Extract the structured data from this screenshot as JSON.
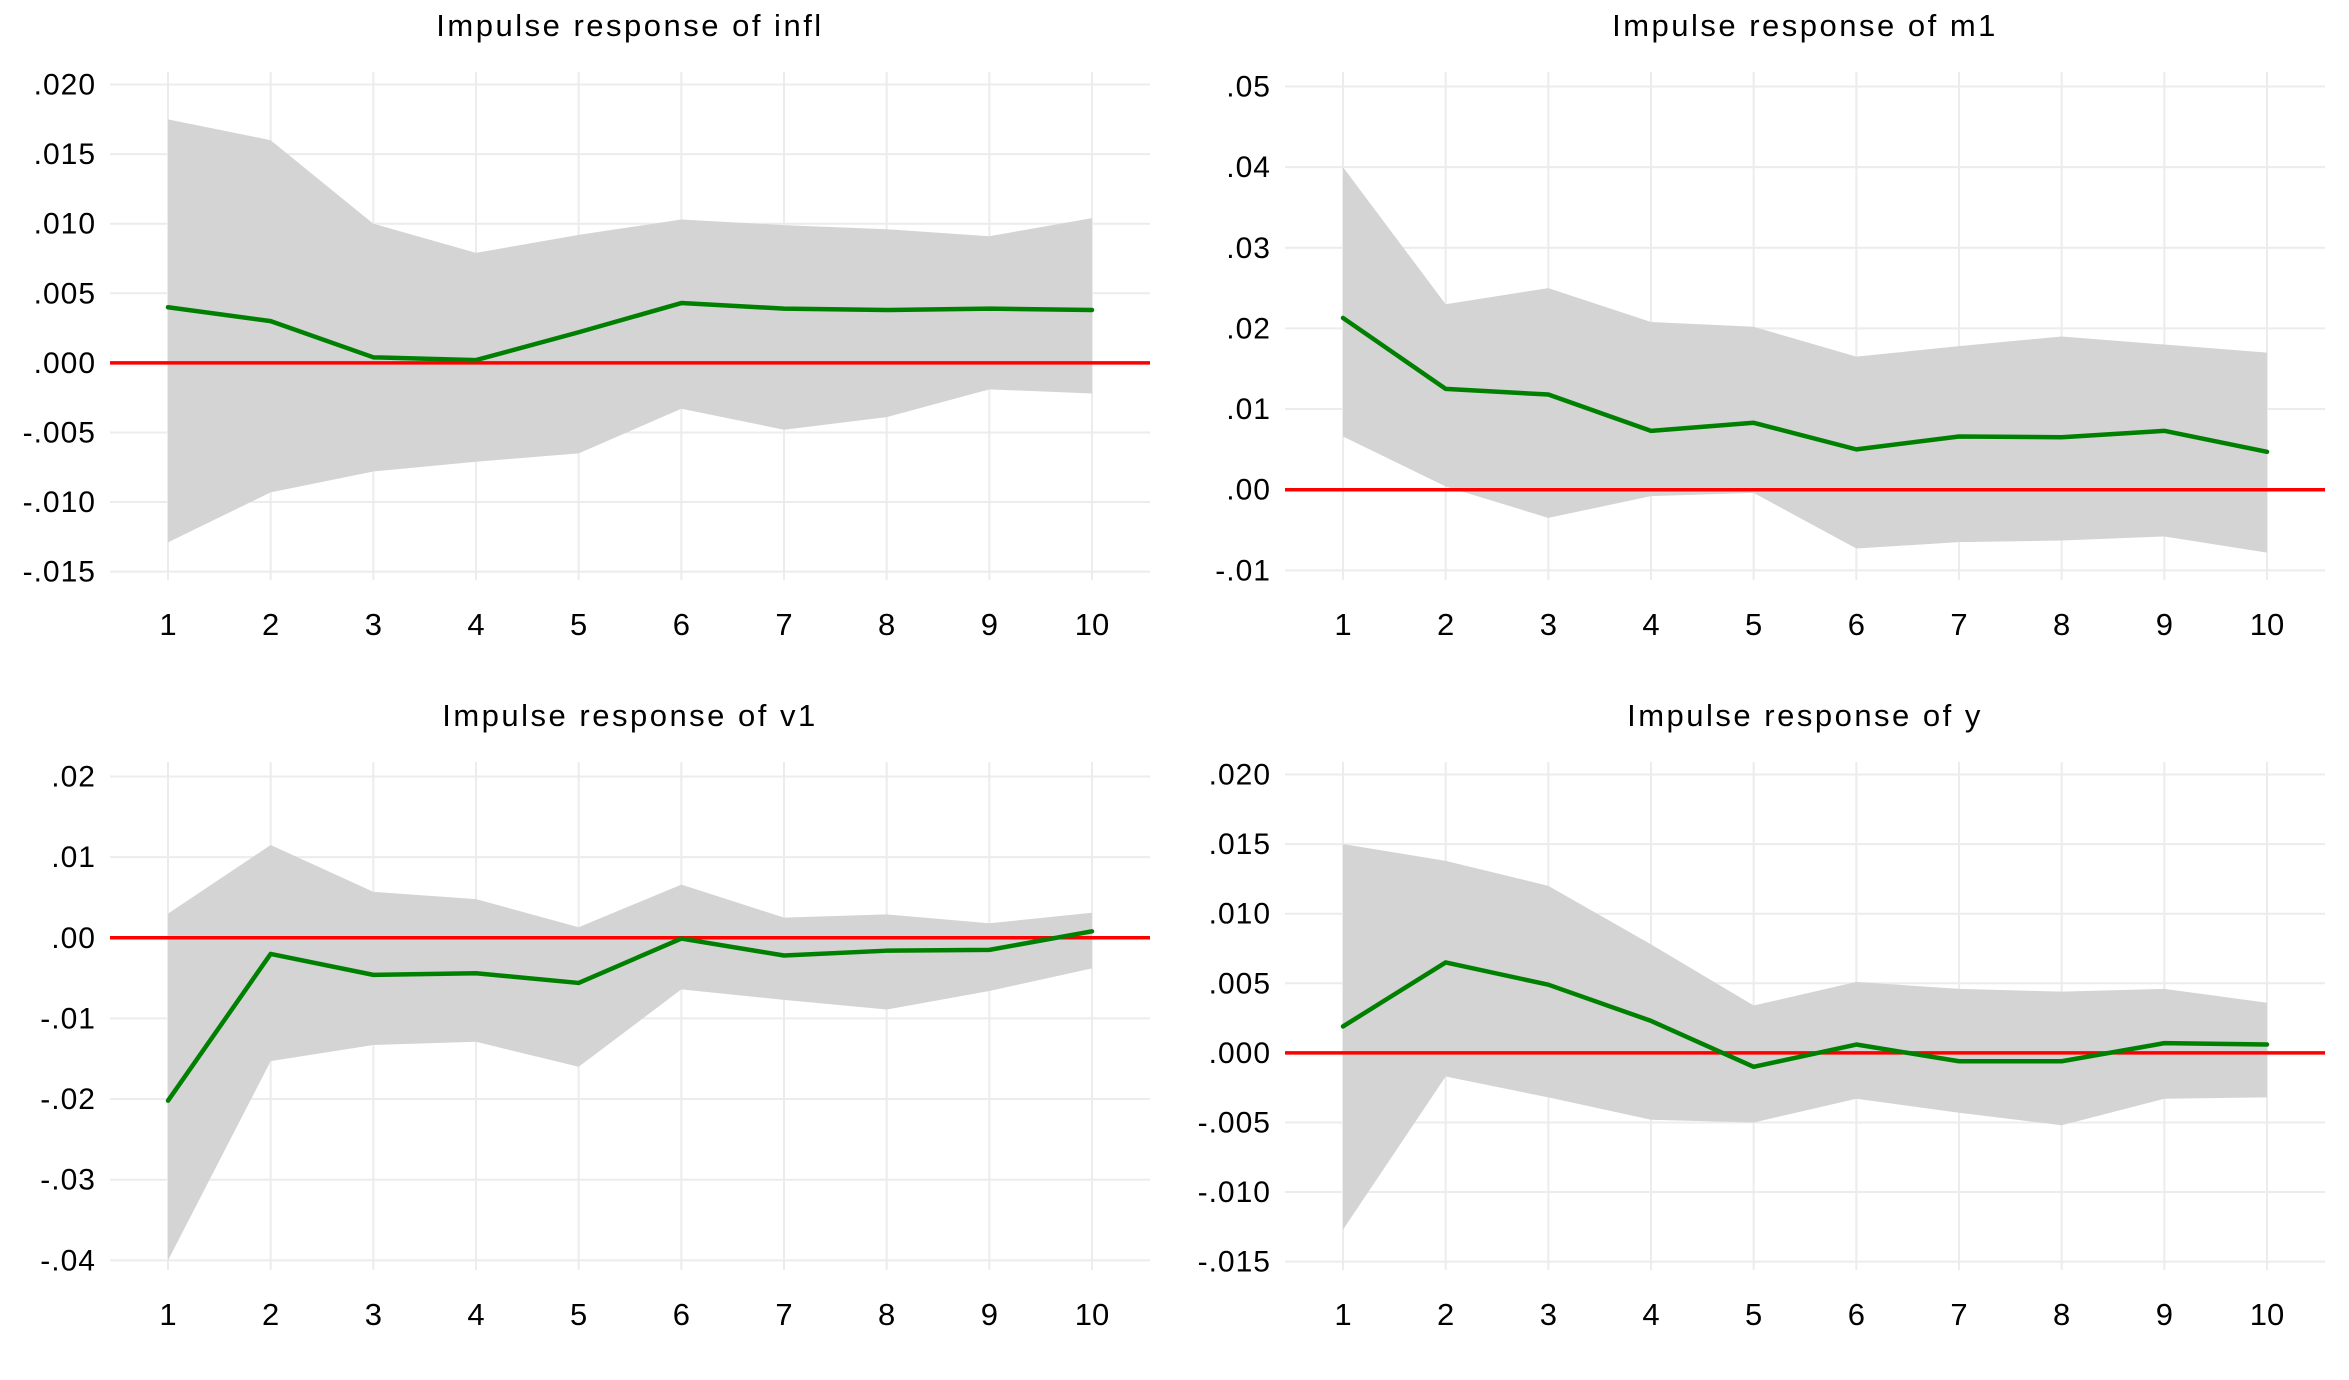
{
  "page": {
    "background": "#ffffff",
    "description": "2x2 grid of vector-autoregression impulse response function charts with 95% confidence bands"
  },
  "style": {
    "response_line_color": "#008000",
    "band_color": "#d4d4d4",
    "zero_line_color": "#ff0000",
    "grid_color": "#ececec",
    "text_color": "#000000"
  },
  "chart_data": [
    {
      "type": "line",
      "title": "Impulse response of infl",
      "x": [
        1,
        2,
        3,
        4,
        5,
        6,
        7,
        8,
        9,
        10
      ],
      "xtick_labels": [
        "1",
        "2",
        "3",
        "4",
        "5",
        "6",
        "7",
        "8",
        "9",
        "10"
      ],
      "series": [
        {
          "name": "response",
          "values": [
            0.004,
            0.003,
            0.0004,
            0.0002,
            0.0022,
            0.0043,
            0.0039,
            0.0038,
            0.0039,
            0.0038
          ]
        },
        {
          "name": "ci_upper",
          "values": [
            0.0175,
            0.016,
            0.01,
            0.0079,
            0.0092,
            0.0103,
            0.0099,
            0.0096,
            0.0091,
            0.0104
          ]
        },
        {
          "name": "ci_lower",
          "values": [
            -0.0129,
            -0.0093,
            -0.0078,
            -0.0071,
            -0.0065,
            -0.0033,
            -0.0048,
            -0.0039,
            -0.0019,
            -0.0022
          ]
        }
      ],
      "ytick_values": [
        0.02,
        0.015,
        0.01,
        0.005,
        0.0,
        -0.005,
        -0.01,
        -0.015
      ],
      "ytick_labels": [
        ".020",
        ".015",
        ".010",
        ".005",
        ".000",
        "-.005",
        "-.010",
        "-.015"
      ],
      "ylim": [
        -0.0156,
        0.0209
      ],
      "zero_line": 0,
      "grid": true,
      "legend": "none"
    },
    {
      "type": "line",
      "title": "Impulse response of m1",
      "x": [
        1,
        2,
        3,
        4,
        5,
        6,
        7,
        8,
        9,
        10
      ],
      "xtick_labels": [
        "1",
        "2",
        "3",
        "4",
        "5",
        "6",
        "7",
        "8",
        "9",
        "10"
      ],
      "series": [
        {
          "name": "response",
          "values": [
            0.0213,
            0.0125,
            0.0118,
            0.0073,
            0.0083,
            0.005,
            0.0066,
            0.0065,
            0.0073,
            0.0047
          ]
        },
        {
          "name": "ci_upper",
          "values": [
            0.04,
            0.023,
            0.025,
            0.0208,
            0.0202,
            0.0165,
            0.0178,
            0.019,
            0.018,
            0.017
          ]
        },
        {
          "name": "ci_lower",
          "values": [
            0.0066,
            0.0004,
            -0.0035,
            -0.0008,
            -0.0004,
            -0.0073,
            -0.0065,
            -0.0063,
            -0.0058,
            -0.0078
          ]
        }
      ],
      "ytick_values": [
        0.05,
        0.04,
        0.03,
        0.02,
        0.01,
        0.0,
        -0.01
      ],
      "ytick_labels": [
        ".05",
        ".04",
        ".03",
        ".02",
        ".01",
        ".00",
        "-.01"
      ],
      "ylim": [
        -0.0112,
        0.0518
      ],
      "zero_line": 0,
      "grid": true,
      "legend": "none"
    },
    {
      "type": "line",
      "title": "Impulse response of v1",
      "x": [
        1,
        2,
        3,
        4,
        5,
        6,
        7,
        8,
        9,
        10
      ],
      "xtick_labels": [
        "1",
        "2",
        "3",
        "4",
        "5",
        "6",
        "7",
        "8",
        "9",
        "10"
      ],
      "series": [
        {
          "name": "response",
          "values": [
            -0.0202,
            -0.002,
            -0.0046,
            -0.0044,
            -0.0056,
            -0.0001,
            -0.0022,
            -0.0016,
            -0.0015,
            0.0008
          ]
        },
        {
          "name": "ci_upper",
          "values": [
            0.003,
            0.0115,
            0.0057,
            0.0048,
            0.0013,
            0.0066,
            0.0025,
            0.0029,
            0.0018,
            0.0031
          ]
        },
        {
          "name": "ci_lower",
          "values": [
            -0.04,
            -0.0153,
            -0.0133,
            -0.0129,
            -0.016,
            -0.0064,
            -0.0077,
            -0.0089,
            -0.0066,
            -0.0038
          ]
        }
      ],
      "ytick_values": [
        0.02,
        0.01,
        0.0,
        -0.01,
        -0.02,
        -0.03,
        -0.04
      ],
      "ytick_labels": [
        ".02",
        ".01",
        ".00",
        "-.01",
        "-.02",
        "-.03",
        "-.04"
      ],
      "ylim": [
        -0.0412,
        0.0218
      ],
      "zero_line": 0,
      "grid": true,
      "legend": "none"
    },
    {
      "type": "line",
      "title": "Impulse response of y",
      "x": [
        1,
        2,
        3,
        4,
        5,
        6,
        7,
        8,
        9,
        10
      ],
      "xtick_labels": [
        "1",
        "2",
        "3",
        "4",
        "5",
        "6",
        "7",
        "8",
        "9",
        "10"
      ],
      "series": [
        {
          "name": "response",
          "values": [
            0.0019,
            0.0065,
            0.0049,
            0.0023,
            -0.001,
            0.0006,
            -0.0006,
            -0.0006,
            0.0007,
            0.0006
          ]
        },
        {
          "name": "ci_upper",
          "values": [
            0.015,
            0.0138,
            0.012,
            0.0078,
            0.0034,
            0.0051,
            0.0046,
            0.0044,
            0.0046,
            0.0036
          ]
        },
        {
          "name": "ci_lower",
          "values": [
            -0.0127,
            -0.0017,
            -0.0032,
            -0.0048,
            -0.005,
            -0.0033,
            -0.0043,
            -0.0052,
            -0.0033,
            -0.0032
          ]
        }
      ],
      "ytick_values": [
        0.02,
        0.015,
        0.01,
        0.005,
        0.0,
        -0.005,
        -0.01,
        -0.015
      ],
      "ytick_labels": [
        ".020",
        ".015",
        ".010",
        ".005",
        ".000",
        "-.005",
        "-.010",
        "-.015"
      ],
      "ylim": [
        -0.0156,
        0.0209
      ],
      "zero_line": 0,
      "grid": true,
      "legend": "none"
    }
  ]
}
